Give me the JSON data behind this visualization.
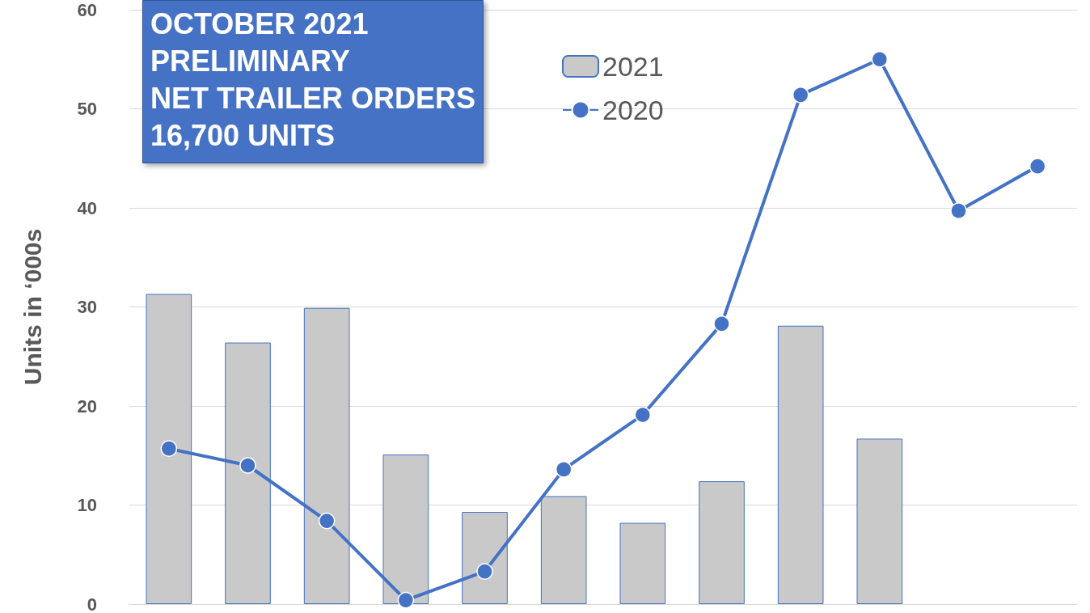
{
  "chart_data": {
    "type": "bar",
    "title": "OCTOBER 2021\nPRELIMINARY\nNET TRAILER ORDERS\n16,700 UNITS",
    "ylabel": "Units in ‘000s",
    "categories": [
      null,
      null,
      null,
      null,
      null,
      null,
      null,
      null,
      null,
      null,
      null,
      null
    ],
    "series": [
      {
        "name": "2021",
        "color": "#c9c9c9",
        "values": [
          31.3,
          26.4,
          29.9,
          15.1,
          9.3,
          10.9,
          8.2,
          12.4,
          28.1,
          16.7,
          null,
          null
        ]
      },
      {
        "name": "2020",
        "type": "line",
        "color": "#4472c4",
        "marker": "circle",
        "values": [
          15.7,
          14.0,
          8.4,
          0.4,
          3.3,
          13.6,
          19.1,
          28.3,
          51.4,
          55.0,
          39.7,
          44.2
        ]
      }
    ],
    "ylim": [
      0,
      60
    ],
    "yticks": [
      0,
      10,
      20,
      30,
      40,
      50,
      60
    ],
    "grid": "y",
    "legend": "top"
  }
}
